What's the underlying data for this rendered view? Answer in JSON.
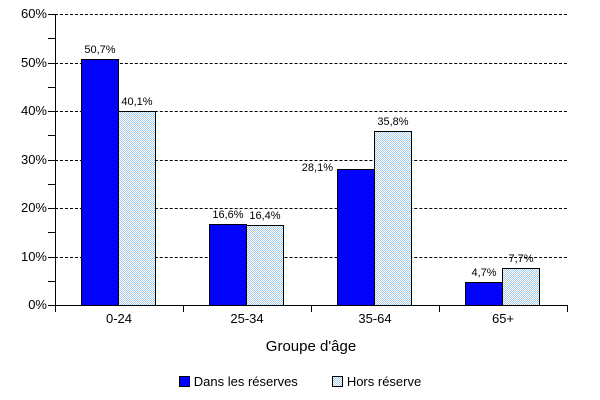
{
  "chart_data": {
    "type": "bar",
    "title": "",
    "xlabel": "Groupe d'âge",
    "ylabel": "",
    "categories": [
      "0-24",
      "25-34",
      "35-64",
      "65+"
    ],
    "series": [
      {
        "name": "Dans les réserves",
        "color": "#0202FA",
        "pattern": "solid",
        "values": [
          50.7,
          16.6,
          28.1,
          4.7
        ],
        "labels": [
          "50,7%",
          "16,6%",
          "28,1%",
          "4,7%"
        ],
        "label_side": [
          "above",
          "above",
          "left",
          "above"
        ]
      },
      {
        "name": "Hors réserve",
        "color": "#A9CCEC",
        "pattern": "checker",
        "values": [
          40.1,
          16.4,
          35.8,
          7.7
        ],
        "labels": [
          "40,1%",
          "16,4%",
          "35,8%",
          "7,7%"
        ],
        "label_side": [
          "above",
          "above",
          "above",
          "above"
        ]
      }
    ],
    "ylim": [
      0,
      60
    ],
    "ytick_step": 10,
    "minor_tick_step": 5,
    "ytick_labels": [
      "0%",
      "10%",
      "20%",
      "30%",
      "40%",
      "50%",
      "60%"
    ],
    "grid": "dashed-horizontal",
    "legend_position": "bottom",
    "axis_color": "#000000",
    "background_color": "#ffffff",
    "pattern_background": "#ffffff"
  }
}
